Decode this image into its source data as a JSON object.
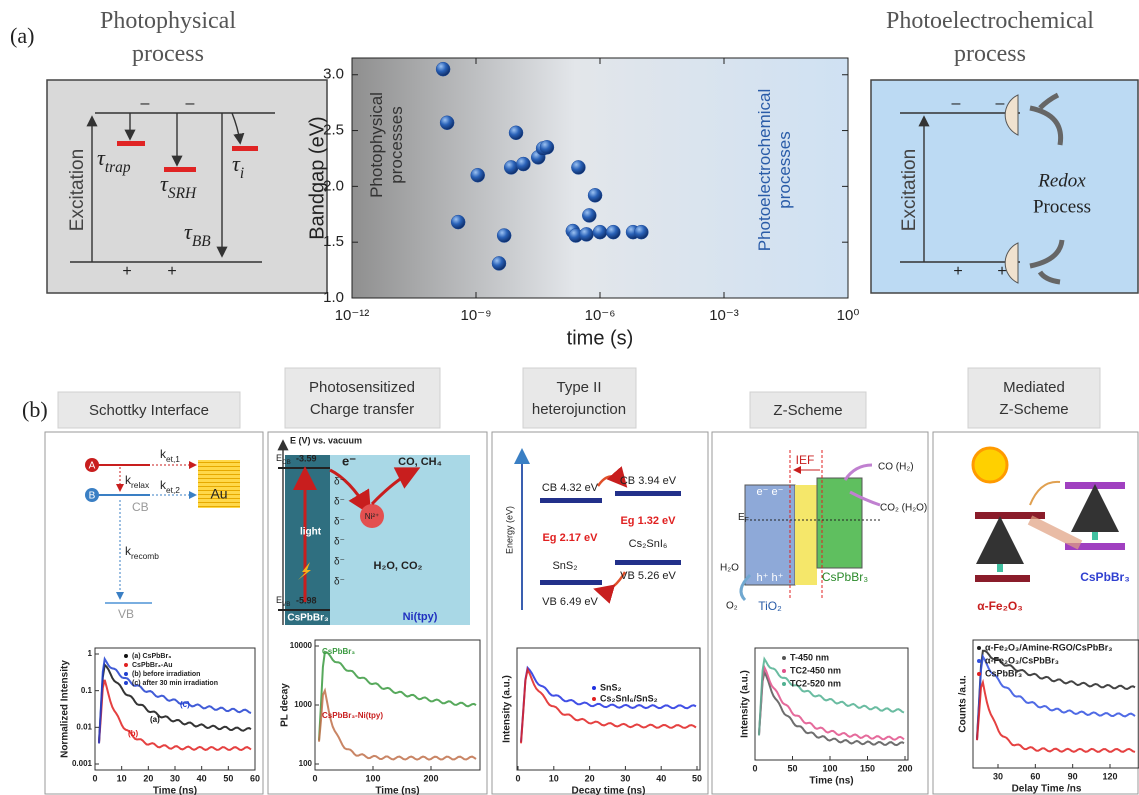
{
  "panel_a": {
    "label": "(a)",
    "left_title": [
      "Photophysical",
      "process"
    ],
    "right_title": [
      "Photoelectrochemical",
      "process"
    ],
    "left_diagram": {
      "excitation": "Excitation",
      "minus": "–",
      "plus": "+",
      "tau_trap": {
        "main": "τ",
        "sub": "trap"
      },
      "tau_srh": {
        "main": "τ",
        "sub": "SRH"
      },
      "tau_i": {
        "main": "τ",
        "sub": "i"
      },
      "tau_bb": {
        "main": "τ",
        "sub": "BB"
      }
    },
    "right_diagram": {
      "excitation": "Excitation",
      "minus": "–",
      "plus": "+",
      "redox": "Redox",
      "process": "Process"
    }
  },
  "chart_data": {
    "type": "scatter",
    "xlabel": "time (s)",
    "ylabel": "Bandgap (eV)",
    "xscale": "log",
    "color": "#1f4e9e",
    "annotations": [
      [
        "Photophysical",
        "processes"
      ],
      [
        "Photoelectrochemical",
        "processes"
      ]
    ],
    "x": [
      1.6e-10,
      2e-10,
      3.7e-10,
      1.1e-09,
      4.8e-09,
      3.6e-09,
      9.3e-09,
      7.1e-09,
      1.4e-08,
      3.2e-08,
      4.2e-08,
      5.2e-08,
      3e-07,
      5.5e-07,
      7.6e-07,
      2.2e-07,
      2.6e-07,
      4.7e-07,
      1e-06,
      2.1e-06,
      6.3e-06,
      1e-05
    ],
    "values": [
      3.05,
      2.57,
      1.68,
      2.1,
      1.56,
      1.31,
      2.48,
      2.17,
      2.2,
      2.26,
      2.34,
      2.35,
      2.17,
      1.74,
      1.92,
      1.6,
      1.56,
      1.57,
      1.59,
      1.59,
      1.59,
      1.59
    ],
    "xlim": [
      1e-12,
      1
    ],
    "xticks": [
      {
        "value": 1e-12,
        "label": "10⁻¹²"
      },
      {
        "value": 1e-09,
        "label": "10⁻⁹"
      },
      {
        "value": 1e-06,
        "label": "10⁻⁶"
      },
      {
        "value": 0.001,
        "label": "10⁻³"
      },
      {
        "value": 1,
        "label": "10⁰"
      }
    ],
    "ylim": [
      1.0,
      3.15
    ],
    "yticks": [
      {
        "value": 1,
        "label": "1.0"
      },
      1.5,
      {
        "value": 2,
        "label": "2.0"
      },
      2.5,
      {
        "value": 3,
        "label": "3.0"
      }
    ]
  },
  "panel_b": {
    "label": "(b)",
    "panels": [
      {
        "title": [
          "Schottky Interface"
        ],
        "texts": {
          "a": "A",
          "b": "B",
          "k_et1": {
            "main": "k",
            "sub": "et,1"
          },
          "k_relax": {
            "main": "k",
            "sub": "relax"
          },
          "k_et2": {
            "main": "k",
            "sub": "et,2"
          },
          "au": "Au",
          "cb": "CB",
          "k_recomb": {
            "main": "k",
            "sub": "recomb"
          },
          "vb": "VB"
        },
        "plot": {
          "legend": [
            "(a) CsPbBr₃",
            "CsPbBr₃-Au",
            "(b) before irradiation",
            "(c) after 30 min irradiation"
          ],
          "curve_labels": [
            "(a)",
            "(b)",
            "(c)"
          ],
          "ylabel": "Normalized Intensity",
          "yticks": [
            1,
            0.1,
            0.01,
            0.001
          ],
          "xticks": [
            0,
            10,
            20,
            30,
            40,
            50,
            60
          ],
          "xlabel": "Time (ns)"
        }
      },
      {
        "title": [
          "Photosensitized",
          "Charge transfer"
        ],
        "texts": {
          "axis": "E (V) vs. vacuum",
          "ecb": {
            "main": "E",
            "sub": "CB"
          },
          "ecb_value": "-3.59",
          "evb": {
            "main": "E",
            "sub": "VB"
          },
          "evb_value": "-5.98",
          "electron": "e⁻",
          "light": "light",
          "left": "CsPbBr₃",
          "right": "Ni(tpy)",
          "products": "CO, CH₄",
          "reactants": "H₂O, CO₂",
          "ni": "Ni²⁺",
          "delta": "δ⁻"
        },
        "plot": {
          "curve_labels": [
            "CsPbBr₃",
            "CsPbBr₃-Ni(tpy)"
          ],
          "ylabel": "PL decay",
          "yticks": [
            10000,
            1000,
            100
          ],
          "xticks": [
            0,
            100,
            200
          ],
          "xlabel": "Time (ns)"
        }
      },
      {
        "title": [
          "Type II",
          "heterojunction"
        ],
        "texts": {
          "cb1": "CB 4.32 eV",
          "cb2": "CB 3.94 eV",
          "eg1": "Eg 2.17 eV",
          "eg2": "Eg 1.32 eV",
          "m1": "SnS₂",
          "m2": "Cs₂SnI₆",
          "vb1": "VB 6.49  eV",
          "vb2": "VB 5.26 eV",
          "axis": "Energy (eV)"
        },
        "plot": {
          "legend": [
            "SnS₂",
            "Cs₂SnI₆/SnS₂"
          ],
          "ylabel": "Intensity (a.u.)",
          "xticks": [
            0,
            10,
            20,
            30,
            40,
            50
          ],
          "xlabel": "Decay time (ns)"
        }
      },
      {
        "title": [
          "Z-Scheme"
        ],
        "texts": {
          "ief": "IEF",
          "co": "CO (H₂)",
          "co2": "CO₂ (H₂O)",
          "ef": {
            "main": "E",
            "sub": "F"
          },
          "h2o": "H₂O",
          "o2": "O₂",
          "tio2": "TiO₂",
          "cspbbr3": "CsPbBr₃",
          "holes": "h⁺ h⁺",
          "electrons": "e⁻ e⁻"
        },
        "plot": {
          "legend": [
            "T-450 nm",
            "TC2-450 nm",
            "TC2-520 nm"
          ],
          "ylabel": "Intensity (a.u.)",
          "xticks": [
            0,
            50,
            100,
            150,
            200
          ],
          "xlabel": "Time (ns)"
        }
      },
      {
        "title": [
          "Mediated",
          "Z-Scheme"
        ],
        "texts": {
          "cspbbr3": "CsPbBr₃",
          "fe2o3": "α-Fe₂O₃"
        },
        "plot": {
          "legend": [
            "α-Fe₂O₃/Amine-RGO/CsPbBr₃",
            "α-Fe₂O₃/CsPbBr₃",
            "CsPbBr₃"
          ],
          "ylabel": "Counts /a.u.",
          "xticks": [
            30,
            60,
            90,
            120
          ],
          "xlabel": "Delay Time /ns"
        }
      }
    ]
  }
}
